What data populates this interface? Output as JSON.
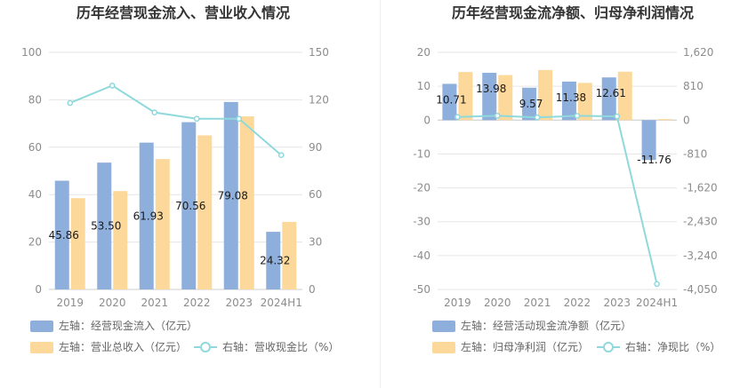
{
  "chart_data": [
    {
      "type": "bar",
      "title": "历年经营现金流入、营业收入情况",
      "categories": [
        "2019",
        "2020",
        "2021",
        "2022",
        "2023",
        "2024H1"
      ],
      "y_left": {
        "ticks": [
          "0",
          "20",
          "40",
          "60",
          "80",
          "100"
        ],
        "ylim": [
          0,
          100
        ]
      },
      "y_right": {
        "ticks": [
          "0",
          "30",
          "60",
          "90",
          "120",
          "150"
        ],
        "ylim": [
          0,
          150
        ]
      },
      "series": [
        {
          "name": "左轴：经营现金流入（亿元）",
          "kind": "bar",
          "axis": "left",
          "color": "#8eaedc",
          "values": [
            45.86,
            53.5,
            61.93,
            70.56,
            79.08,
            24.32
          ],
          "labels": [
            "45.86",
            "53.50",
            "61.93",
            "70.56",
            "79.08",
            "24.32"
          ]
        },
        {
          "name": "左轴：营业总收入（亿元）",
          "kind": "bar",
          "axis": "left",
          "color": "#fdd89b",
          "values": [
            38.5,
            41.5,
            55,
            65,
            73,
            28.5
          ]
        },
        {
          "name": "右轴：营收现金比（%）",
          "kind": "line",
          "axis": "right",
          "color": "#8fd9dc",
          "values": [
            118,
            129,
            112,
            108,
            108,
            85
          ]
        }
      ],
      "grid": true
    },
    {
      "type": "bar",
      "title": "历年经营现金流净额、归母净利润情况",
      "categories": [
        "2019",
        "2020",
        "2021",
        "2022",
        "2023",
        "2024H1"
      ],
      "y_left": {
        "ticks": [
          "-50",
          "-40",
          "-30",
          "-20",
          "-10",
          "0",
          "10",
          "20"
        ],
        "ylim": [
          -50,
          20
        ]
      },
      "y_right": {
        "ticks": [
          "-4,050",
          "-3,240",
          "-2,430",
          "-1,620",
          "-810",
          "0",
          "810",
          "1,620"
        ],
        "ylim": [
          -4050,
          1620
        ]
      },
      "series": [
        {
          "name": "左轴：经营活动现金流净额（亿元）",
          "kind": "bar",
          "axis": "left",
          "color": "#8eaedc",
          "values": [
            10.71,
            13.98,
            9.57,
            11.38,
            12.61,
            -11.76
          ],
          "labels": [
            "10.71",
            "13.98",
            "9.57",
            "11.38",
            "12.61",
            "-11.76"
          ]
        },
        {
          "name": "左轴：归母净利润（亿元）",
          "kind": "bar",
          "axis": "left",
          "color": "#fdd89b",
          "values": [
            14.2,
            13.3,
            14.8,
            11,
            14.3,
            0.3
          ]
        },
        {
          "name": "右轴：净现比（%）",
          "kind": "line",
          "axis": "right",
          "color": "#8fd9dc",
          "values": [
            75,
            105,
            65,
            103,
            88,
            -3920
          ]
        }
      ],
      "grid": true
    }
  ]
}
